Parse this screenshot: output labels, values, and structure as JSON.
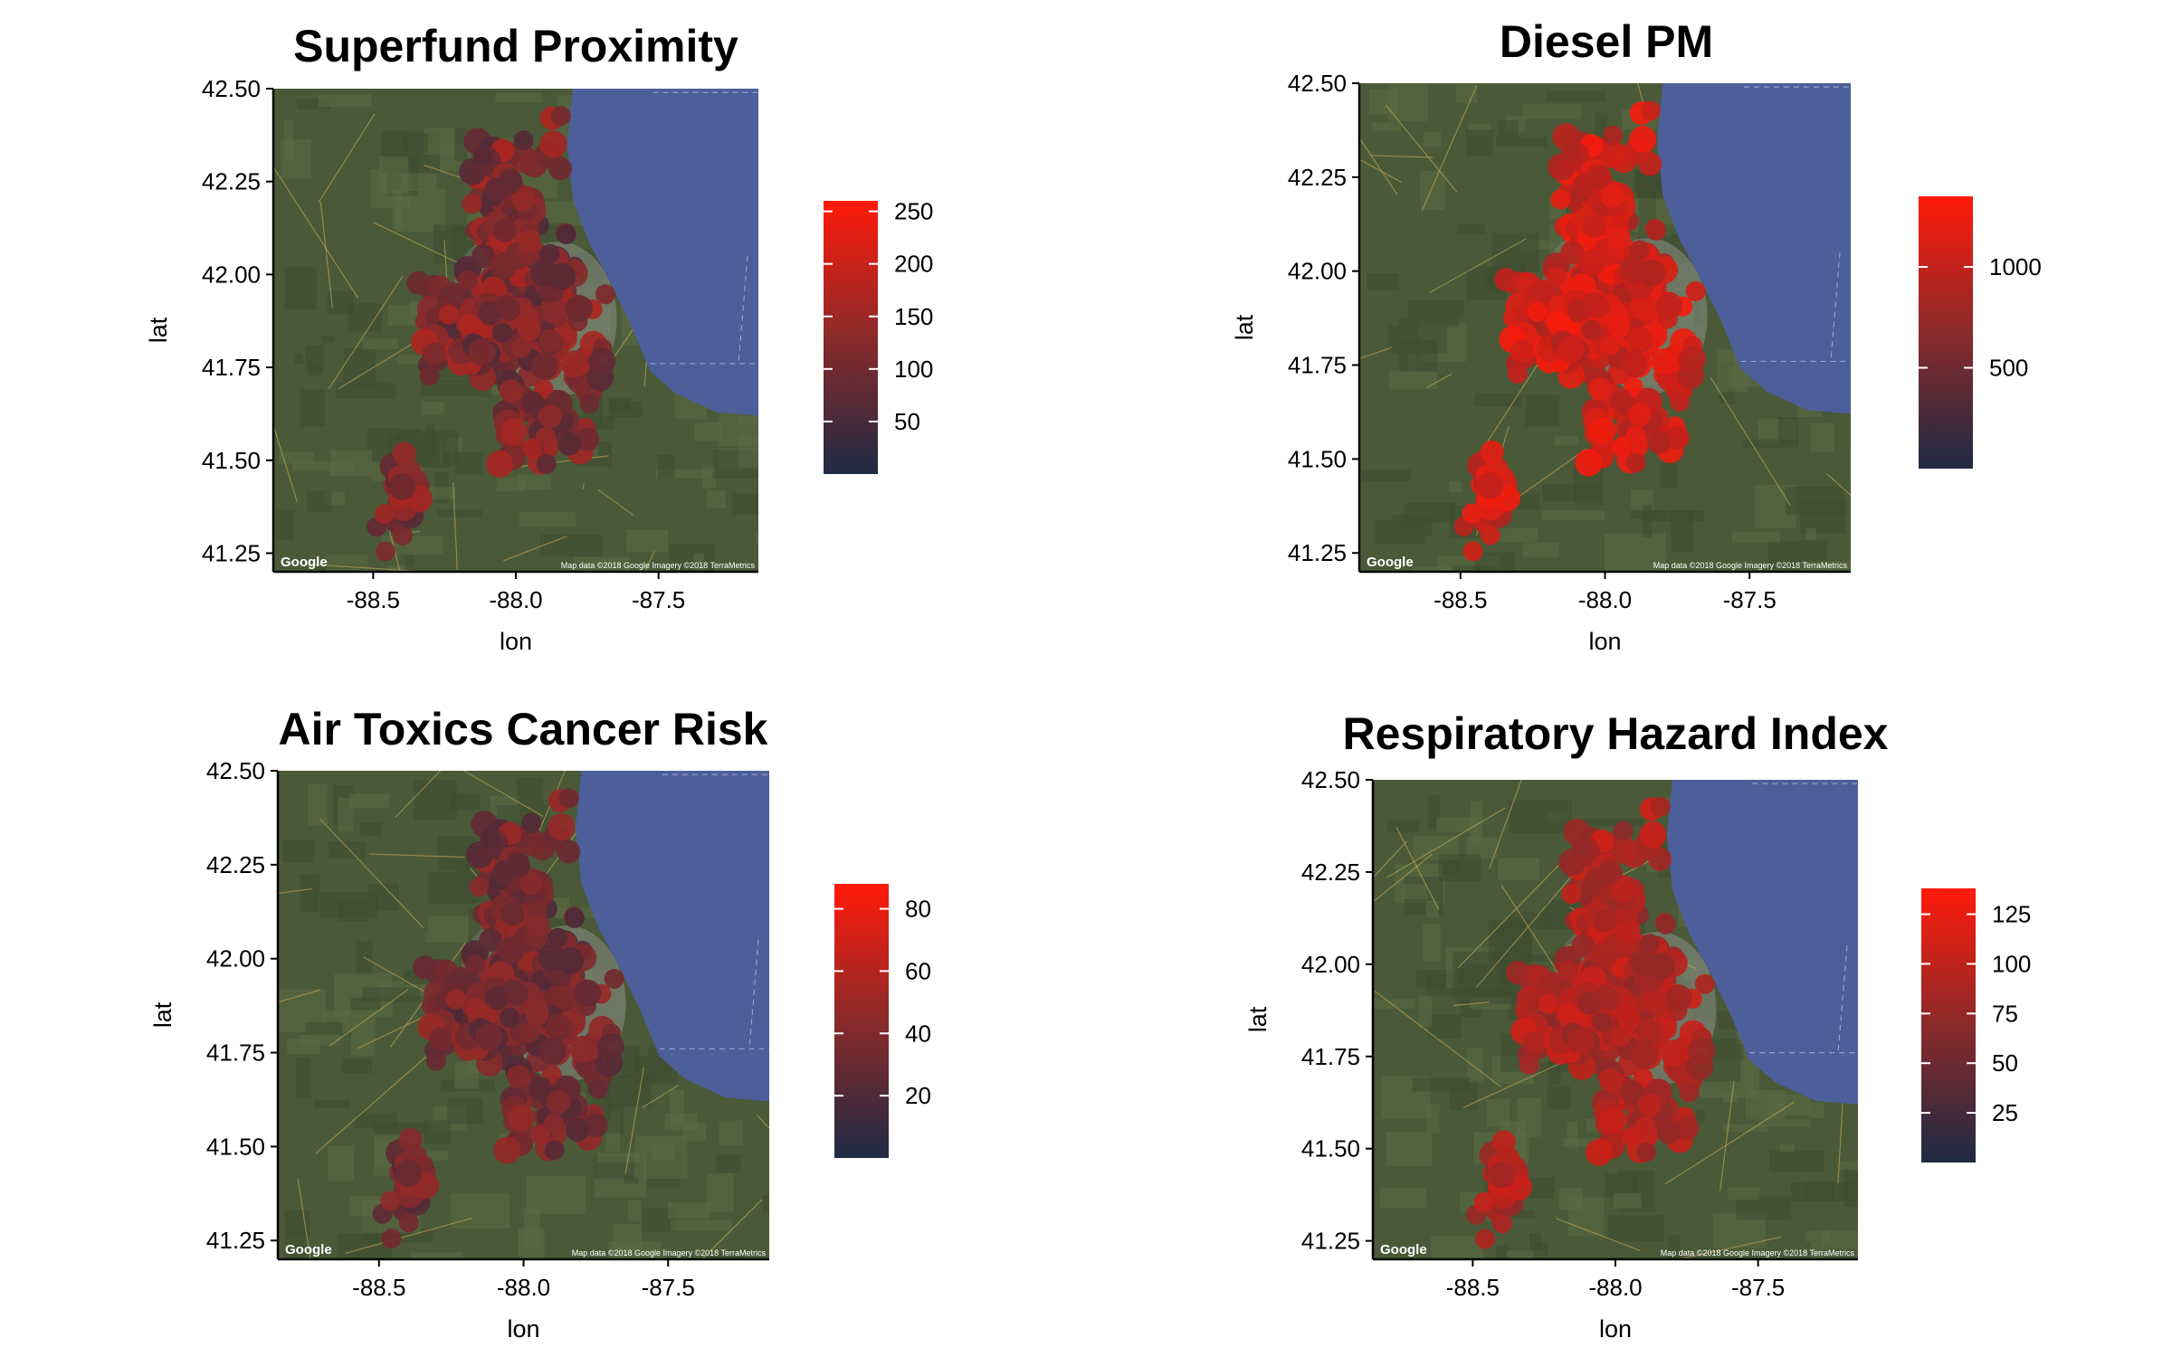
{
  "colors": {
    "water": "#4d5f9a",
    "land": "#4a5a38",
    "low": "#1e2a44",
    "mid": "#8a2a2a",
    "high": "#ff1a0a"
  },
  "basemap": {
    "credit": "Google",
    "attribution": "Map data ©2018 Google  Imagery ©2018 TerraMetrics"
  },
  "chart_data": [
    {
      "type": "scatter",
      "title": "Superfund Proximity",
      "xlabel": "lon",
      "ylabel": "lat",
      "xlim": [
        -88.85,
        -87.15
      ],
      "ylim": [
        41.2,
        42.5
      ],
      "xticks": [
        -88.5,
        -88.0,
        -87.5
      ],
      "xtick_labels": [
        "-88.5",
        "-88.0",
        "-87.5"
      ],
      "yticks": [
        41.25,
        41.5,
        41.75,
        42.0,
        42.25,
        42.5
      ],
      "ytick_labels": [
        "41.25",
        "41.50",
        "41.75",
        "42.00",
        "42.25",
        "42.50"
      ],
      "color_scale": {
        "min": 0,
        "max": 260,
        "ticks": [
          50,
          100,
          150,
          200,
          250
        ],
        "tick_labels": [
          "50",
          "100",
          "150",
          "200",
          "250"
        ]
      },
      "value_range": [
        60,
        170
      ]
    },
    {
      "type": "scatter",
      "title": "Diesel PM",
      "xlabel": "lon",
      "ylabel": "lat",
      "xlim": [
        -88.85,
        -87.15
      ],
      "ylim": [
        41.2,
        42.5
      ],
      "xticks": [
        -88.5,
        -88.0,
        -87.5
      ],
      "xtick_labels": [
        "-88.5",
        "-88.0",
        "-87.5"
      ],
      "yticks": [
        41.25,
        41.5,
        41.75,
        42.0,
        42.25,
        42.5
      ],
      "ytick_labels": [
        "41.25",
        "41.50",
        "41.75",
        "42.00",
        "42.25",
        "42.50"
      ],
      "color_scale": {
        "min": 0,
        "max": 1350,
        "ticks": [
          500,
          1000
        ],
        "tick_labels": [
          "500",
          "1000"
        ]
      },
      "value_range": [
        850,
        1300
      ]
    },
    {
      "type": "scatter",
      "title": "Air Toxics Cancer Risk",
      "xlabel": "lon",
      "ylabel": "lat",
      "xlim": [
        -88.85,
        -87.15
      ],
      "ylim": [
        41.2,
        42.5
      ],
      "xticks": [
        -88.5,
        -88.0,
        -87.5
      ],
      "xtick_labels": [
        "-88.5",
        "-88.0",
        "-87.5"
      ],
      "yticks": [
        41.25,
        41.5,
        41.75,
        42.0,
        42.25,
        42.5
      ],
      "ytick_labels": [
        "41.25",
        "41.50",
        "41.75",
        "42.00",
        "42.25",
        "42.50"
      ],
      "color_scale": {
        "min": 0,
        "max": 88,
        "ticks": [
          20,
          40,
          60,
          80
        ],
        "tick_labels": [
          "20",
          "40",
          "60",
          "80"
        ]
      },
      "value_range": [
        20,
        50
      ]
    },
    {
      "type": "scatter",
      "title": "Respiratory Hazard Index",
      "xlabel": "lon",
      "ylabel": "lat",
      "xlim": [
        -88.85,
        -87.15
      ],
      "ylim": [
        41.2,
        42.5
      ],
      "xticks": [
        -88.5,
        -88.0,
        -87.5
      ],
      "xtick_labels": [
        "-88.5",
        "-88.0",
        "-87.5"
      ],
      "yticks": [
        41.25,
        41.5,
        41.75,
        42.0,
        42.25,
        42.5
      ],
      "ytick_labels": [
        "41.25",
        "41.50",
        "41.75",
        "42.00",
        "42.25",
        "42.50"
      ],
      "color_scale": {
        "min": 0,
        "max": 138,
        "ticks": [
          25,
          50,
          75,
          100,
          125
        ],
        "tick_labels": [
          "25",
          "50",
          "75",
          "100",
          "125"
        ]
      },
      "value_range": [
        70,
        110
      ]
    }
  ]
}
